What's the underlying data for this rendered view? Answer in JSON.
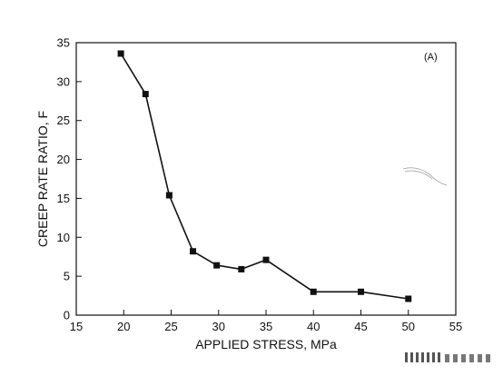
{
  "chart_data": {
    "type": "line",
    "panel_label": "(A)",
    "xlabel": "APPLIED STRESS, MPa",
    "ylabel": "CREEP RATE RATIO, F",
    "xlim": [
      15,
      55
    ],
    "ylim": [
      0,
      35
    ],
    "x_ticks": [
      15,
      20,
      25,
      30,
      35,
      40,
      45,
      50,
      55
    ],
    "y_ticks": [
      0,
      5,
      10,
      15,
      20,
      25,
      30,
      35
    ],
    "grid": false,
    "series": [
      {
        "marker": "square",
        "points": [
          {
            "x": 19.7,
            "y": 33.6
          },
          {
            "x": 22.3,
            "y": 28.4
          },
          {
            "x": 24.8,
            "y": 15.4
          },
          {
            "x": 27.3,
            "y": 8.2
          },
          {
            "x": 29.8,
            "y": 6.4
          },
          {
            "x": 32.4,
            "y": 5.9
          },
          {
            "x": 35.0,
            "y": 7.1
          },
          {
            "x": 40.0,
            "y": 3.0
          },
          {
            "x": 45.0,
            "y": 3.0
          },
          {
            "x": 50.0,
            "y": 2.1
          }
        ]
      }
    ]
  }
}
